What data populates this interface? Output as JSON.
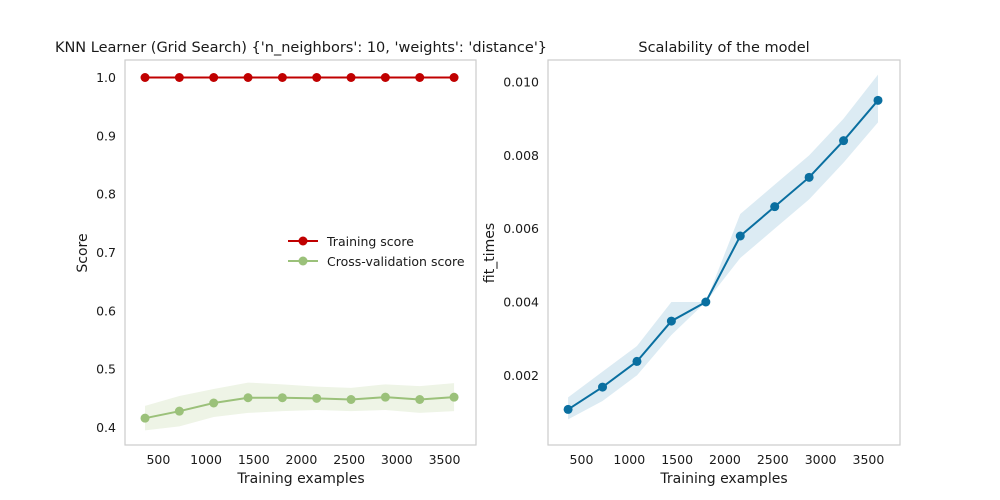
{
  "chart_data": [
    {
      "type": "line",
      "title": "KNN Learner (Grid Search) {'n_neighbors': 10, 'weights': 'distance'}",
      "xlabel": "Training examples",
      "ylabel": "Score",
      "xlim": [
        150,
        3830
      ],
      "ylim": [
        0.37,
        1.03
      ],
      "xticks": [
        500,
        1000,
        1500,
        2000,
        2500,
        3000,
        3500
      ],
      "yticks": [
        0.4,
        0.5,
        0.6,
        0.7,
        0.8,
        0.9,
        1.0
      ],
      "xtick_labels": [
        "500",
        "1000",
        "1500",
        "2000",
        "2500",
        "3000",
        "3500"
      ],
      "ytick_labels": [
        "0.4",
        "0.5",
        "0.6",
        "0.7",
        "0.8",
        "0.9",
        "1.0"
      ],
      "x": [
        360,
        720,
        1080,
        1440,
        1800,
        2160,
        2520,
        2880,
        3240,
        3600
      ],
      "grid": false,
      "legend_position": "center-right",
      "series": [
        {
          "name": "Training score",
          "color": "#c00000",
          "values": [
            1.0,
            1.0,
            1.0,
            1.0,
            1.0,
            1.0,
            1.0,
            1.0,
            1.0,
            1.0
          ],
          "band_lower": [
            1.0,
            1.0,
            1.0,
            1.0,
            1.0,
            1.0,
            1.0,
            1.0,
            1.0,
            1.0
          ],
          "band_upper": [
            1.0,
            1.0,
            1.0,
            1.0,
            1.0,
            1.0,
            1.0,
            1.0,
            1.0,
            1.0
          ]
        },
        {
          "name": "Cross-validation score",
          "color": "#9bc17a",
          "band_color": "#eef4e6",
          "values": [
            0.416,
            0.428,
            0.442,
            0.451,
            0.451,
            0.45,
            0.448,
            0.452,
            0.448,
            0.452
          ],
          "band_lower": [
            0.395,
            0.402,
            0.418,
            0.425,
            0.428,
            0.43,
            0.428,
            0.43,
            0.425,
            0.428
          ],
          "band_upper": [
            0.437,
            0.454,
            0.466,
            0.477,
            0.474,
            0.47,
            0.468,
            0.474,
            0.471,
            0.476
          ]
        }
      ]
    },
    {
      "type": "line",
      "title": "Scalability of the model",
      "xlabel": "Training examples",
      "ylabel": "fit_times",
      "xlim": [
        150,
        3830
      ],
      "ylim": [
        0.0001,
        0.0106
      ],
      "xticks": [
        500,
        1000,
        1500,
        2000,
        2500,
        3000,
        3500
      ],
      "yticks": [
        0.002,
        0.004,
        0.006,
        0.008,
        0.01
      ],
      "xtick_labels": [
        "500",
        "1000",
        "1500",
        "2000",
        "2500",
        "3000",
        "3500"
      ],
      "ytick_labels": [
        "0.002",
        "0.004",
        "0.006",
        "0.008",
        "0.010"
      ],
      "x": [
        360,
        720,
        1080,
        1440,
        1800,
        2160,
        2520,
        2880,
        3240,
        3600
      ],
      "grid": false,
      "series": [
        {
          "color": "#0a6fa0",
          "band_color": "#dcebf3",
          "values": [
            0.00107,
            0.00168,
            0.00238,
            0.00348,
            0.004,
            0.0058,
            0.0066,
            0.0074,
            0.0084,
            0.0095
          ],
          "band_lower": [
            0.0008,
            0.0013,
            0.002,
            0.0031,
            0.004,
            0.0052,
            0.006,
            0.0068,
            0.0078,
            0.0089
          ],
          "band_upper": [
            0.0014,
            0.0021,
            0.0028,
            0.004,
            0.004,
            0.0064,
            0.0072,
            0.008,
            0.009,
            0.0102
          ]
        }
      ]
    }
  ]
}
